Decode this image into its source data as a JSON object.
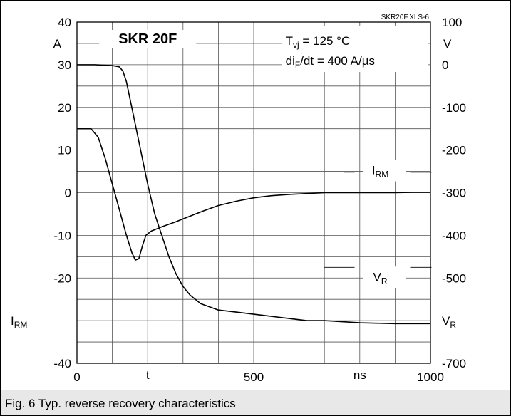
{
  "chart_data": {
    "type": "line",
    "title": "SKR 20F",
    "file_label": "SKR20F.XLS-6",
    "conditions": {
      "temperature": {
        "main": "T",
        "sub": "vj",
        "rest": " = 125 °C"
      },
      "slope": {
        "main": "di",
        "sub": "F",
        "rest": "/dt = 400 A/µs"
      }
    },
    "x_axis": {
      "range": [
        0,
        1000
      ],
      "ticks": [
        0,
        500,
        1000
      ],
      "tick_labels": [
        "0",
        "500",
        "1000"
      ],
      "grid_step": 100,
      "label": "t",
      "unit": "ns"
    },
    "y_left": {
      "range": [
        -40,
        40
      ],
      "ticks": [
        40,
        30,
        20,
        10,
        0,
        -10,
        -20,
        -40
      ],
      "tick_labels": [
        "40",
        "30",
        "20",
        "10",
        "0",
        "-10",
        "-20",
        "-40"
      ],
      "unit": "A",
      "label": {
        "main": "I",
        "sub": "RM"
      },
      "grid_step": 5
    },
    "y_right": {
      "range": [
        -700,
        100
      ],
      "ticks": [
        100,
        0,
        -100,
        -200,
        -300,
        -400,
        -500,
        -700
      ],
      "tick_labels": [
        "100",
        "0",
        "-100",
        "-200",
        "-300",
        "-400",
        "-500",
        "-700"
      ],
      "unit": "V",
      "label": {
        "main": "V",
        "sub": "R"
      }
    },
    "grid": true,
    "series": [
      {
        "name": {
          "main": "I",
          "sub": "RM"
        },
        "axis": "left",
        "x": [
          0,
          40,
          60,
          80,
          100,
          120,
          140,
          155,
          165,
          175,
          185,
          195,
          210,
          240,
          280,
          320,
          360,
          400,
          450,
          500,
          550,
          600,
          650,
          700,
          750,
          800,
          850,
          900,
          950,
          1000
        ],
        "y": [
          15,
          15,
          13,
          8,
          2,
          -4,
          -10,
          -14,
          -15.8,
          -15.5,
          -12.5,
          -10,
          -9,
          -8,
          -6.8,
          -5.5,
          -4.2,
          -3,
          -2,
          -1.2,
          -0.7,
          -0.4,
          -0.2,
          0,
          0,
          0,
          0,
          0,
          0.1,
          0.1
        ]
      },
      {
        "name": {
          "main": "V",
          "sub": "R"
        },
        "axis": "right",
        "x": [
          0,
          50,
          100,
          120,
          130,
          140,
          150,
          160,
          180,
          200,
          220,
          240,
          260,
          280,
          300,
          320,
          350,
          400,
          450,
          500,
          550,
          600,
          650,
          700,
          800,
          900,
          1000
        ],
        "y": [
          0,
          0,
          -2,
          -5,
          -15,
          -40,
          -80,
          -120,
          -200,
          -280,
          -350,
          -400,
          -450,
          -490,
          -520,
          -540,
          -560,
          -575,
          -580,
          -585,
          -590,
          -595,
          -600,
          -600,
          -605,
          -607,
          -607
        ]
      }
    ],
    "annotations": [
      {
        "series": 0,
        "x": 870,
        "y": 5,
        "anchor_x": 755,
        "anchor_y": 4.8
      },
      {
        "series": 1,
        "x": 870,
        "y": -20,
        "anchor_x": 700,
        "anchor_y": -17.5
      }
    ]
  },
  "caption": "Fig. 6 Typ. reverse recovery characteristics"
}
